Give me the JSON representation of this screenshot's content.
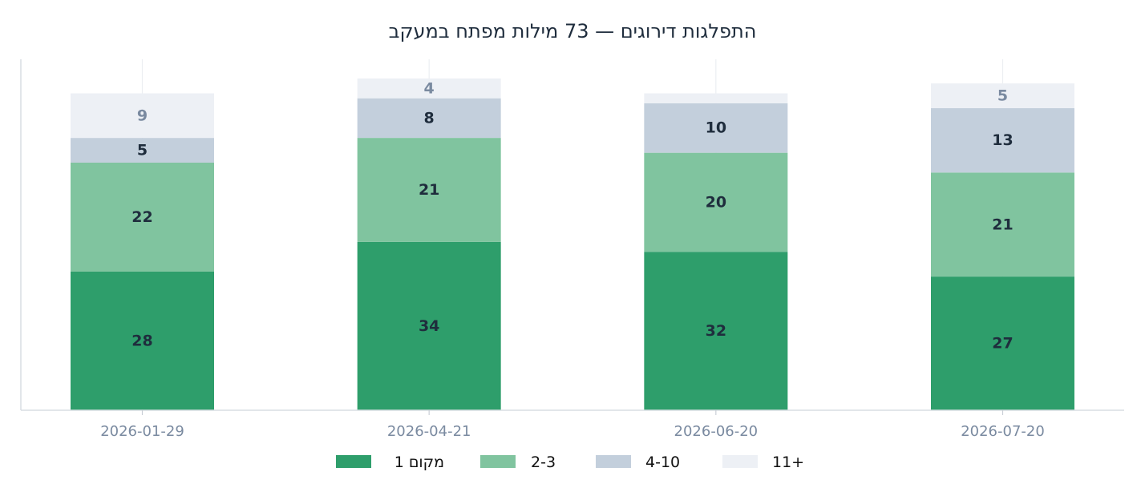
{
  "chart_data": {
    "type": "bar",
    "stacked": true,
    "title": "התפלגות דירוגים — 73 מילות מפתח במעקב",
    "xlabel": "",
    "ylabel": "",
    "categories": [
      "2026-01-29",
      "2026-04-21",
      "2026-06-20",
      "2026-07-20"
    ],
    "ylim": [
      0,
      70
    ],
    "grid": {
      "x": true,
      "y": false
    },
    "legend_position": "bottom-center",
    "series": [
      {
        "name": "מקום 1",
        "values": [
          28,
          34,
          32,
          27
        ],
        "color": "#2e9e6b",
        "label_color": "#1f2d3d"
      },
      {
        "name": "2-3",
        "values": [
          22,
          21,
          20,
          21
        ],
        "color": "#80c49f",
        "label_color": "#1f2d3d"
      },
      {
        "name": "4-10",
        "values": [
          5,
          8,
          10,
          13
        ],
        "color": "#c3cfdc",
        "label_color": "#1f2d3d"
      },
      {
        "name": "11+",
        "values": [
          9,
          4,
          2,
          5
        ],
        "color": "#edf0f5",
        "label_color": "#7a8aa0",
        "labels_shown": [
          true,
          true,
          false,
          true
        ]
      }
    ]
  }
}
